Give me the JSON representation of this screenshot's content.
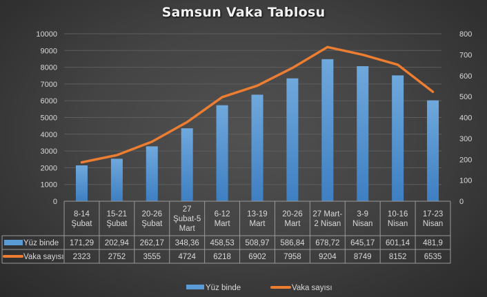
{
  "chart_data": {
    "type": "bar",
    "title": "Samsun Vaka Tablosu",
    "categories": [
      [
        "8-14",
        "Şubat"
      ],
      [
        "15-21",
        "Şubat"
      ],
      [
        "20-26",
        "Şubat"
      ],
      [
        "27",
        "Şubat-5",
        "Mart"
      ],
      [
        "6-12",
        "Mart"
      ],
      [
        "13-19",
        "Mart"
      ],
      [
        "20-26",
        "Mart"
      ],
      [
        "27 Mart-",
        "2 Nisan"
      ],
      [
        "3-9",
        "Nisan"
      ],
      [
        "10-16",
        "Nisan"
      ],
      [
        "17-23",
        "Nisan"
      ]
    ],
    "series": [
      {
        "name": "Yüz binde",
        "type": "bar",
        "axis": "right",
        "color": "#5B9BD5",
        "values": [
          171.29,
          202.94,
          262.17,
          348.36,
          458.53,
          508.97,
          586.84,
          678.72,
          645.17,
          601.14,
          481.9
        ],
        "labels": [
          "171,29",
          "202,94",
          "262,17",
          "348,36",
          "458,53",
          "508,97",
          "586,84",
          "678,72",
          "645,17",
          "601,14",
          "481,9"
        ]
      },
      {
        "name": "Vaka sayısı",
        "type": "line",
        "axis": "left",
        "color": "#ED7D31",
        "values": [
          2323,
          2752,
          3555,
          4724,
          6218,
          6902,
          7958,
          9204,
          8749,
          8152,
          6535
        ],
        "labels": [
          "2323",
          "2752",
          "3555",
          "4724",
          "6218",
          "6902",
          "7958",
          "9204",
          "8749",
          "8152",
          "6535"
        ]
      }
    ],
    "left_axis": {
      "ylim": [
        0,
        10000
      ],
      "ticks": [
        0,
        1000,
        2000,
        3000,
        4000,
        5000,
        6000,
        7000,
        8000,
        9000,
        10000
      ]
    },
    "right_axis": {
      "ylim": [
        0,
        800
      ],
      "ticks": [
        0,
        100,
        200,
        300,
        400,
        500,
        600,
        700,
        800
      ]
    },
    "grid": true,
    "data_table": true,
    "legend_position": "bottom",
    "xlabel": "",
    "ylabel": ""
  },
  "legend": {
    "items": [
      {
        "label": "Yüz binde",
        "color": "#5B9BD5",
        "kind": "bar"
      },
      {
        "label": "Vaka sayısı",
        "color": "#ED7D31",
        "kind": "line"
      }
    ]
  }
}
